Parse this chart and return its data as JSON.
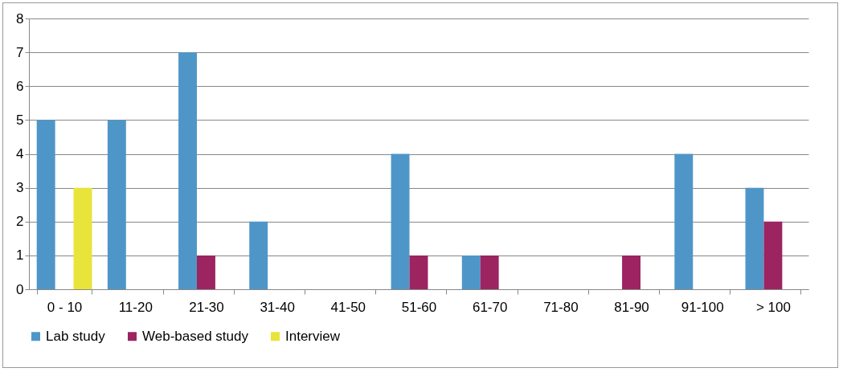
{
  "chart_data": {
    "type": "bar",
    "categories": [
      "0 - 10",
      "11-20",
      "21-30",
      "31-40",
      "41-50",
      "51-60",
      "61-70",
      "71-80",
      "81-90",
      "91-100",
      "> 100"
    ],
    "series": [
      {
        "name": "Lab study",
        "color": "#4f96c8",
        "values": [
          5,
          5,
          7,
          2,
          0,
          4,
          1,
          0,
          0,
          4,
          3
        ]
      },
      {
        "name": "Web-based study",
        "color": "#9c2461",
        "values": [
          0,
          0,
          1,
          0,
          0,
          1,
          1,
          0,
          1,
          0,
          2
        ]
      },
      {
        "name": "Interview",
        "color": "#e8e43a",
        "values": [
          3,
          0,
          0,
          0,
          0,
          0,
          0,
          0,
          0,
          0,
          0
        ]
      }
    ],
    "ylim": [
      0,
      8
    ],
    "yticks": [
      0,
      1,
      2,
      3,
      4,
      5,
      6,
      7,
      8
    ],
    "grid": "y",
    "legend": "bottom"
  }
}
